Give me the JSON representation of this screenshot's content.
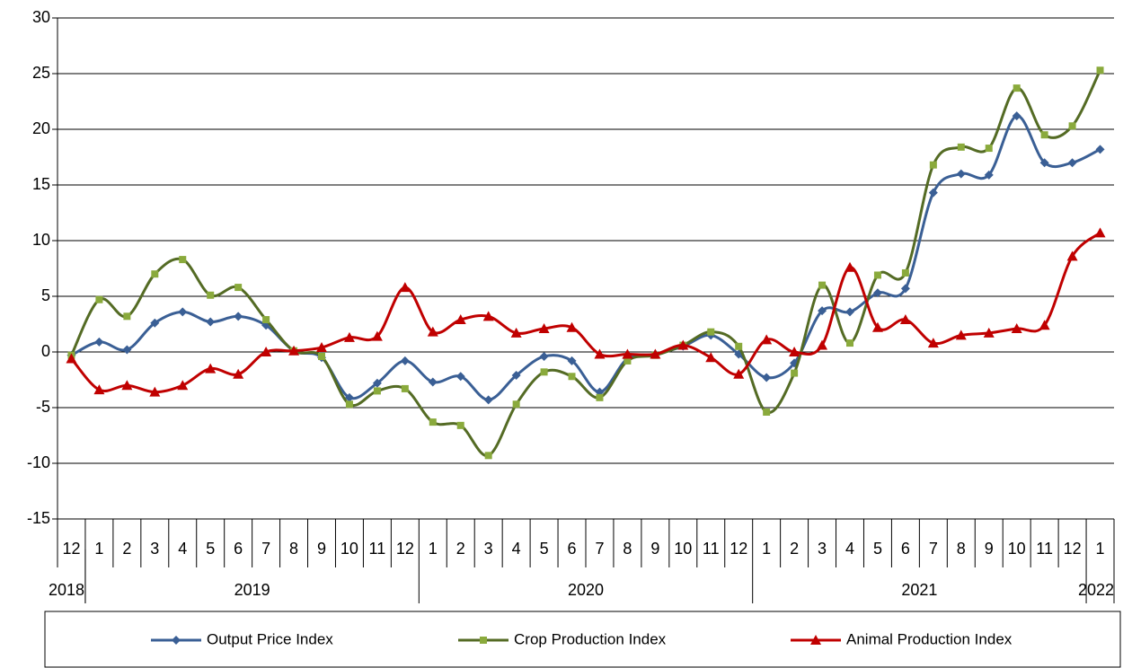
{
  "chart_data": {
    "type": "line",
    "categories": [
      "12",
      "1",
      "2",
      "3",
      "4",
      "5",
      "6",
      "7",
      "8",
      "9",
      "10",
      "11",
      "12",
      "1",
      "2",
      "3",
      "4",
      "5",
      "6",
      "7",
      "8",
      "9",
      "10",
      "11",
      "12",
      "1",
      "2",
      "3",
      "4",
      "5",
      "6",
      "7",
      "8",
      "9",
      "10",
      "11",
      "12",
      "1"
    ],
    "year_labels": [
      "2018",
      "2019",
      "2020",
      "2021",
      "2022"
    ],
    "series": [
      {
        "name": "Output Price Index",
        "color": "#3a5f95",
        "marker": "diamond",
        "values": [
          -0.3,
          0.9,
          0.2,
          2.6,
          3.6,
          2.7,
          3.2,
          2.4,
          0.1,
          -0.5,
          -4.1,
          -2.8,
          -0.8,
          -2.7,
          -2.2,
          -4.3,
          -2.1,
          -0.4,
          -0.8,
          -3.6,
          -0.6,
          -0.2,
          0.5,
          1.5,
          -0.2,
          -2.3,
          -1.0,
          3.7,
          3.6,
          5.3,
          5.7,
          14.3,
          16.0,
          15.9,
          21.2,
          17.0,
          17.0,
          18.2
        ]
      },
      {
        "name": "Crop Production Index",
        "color": "#546b24",
        "marker": "square",
        "marker_color": "#8aaa3c",
        "values": [
          -0.3,
          4.7,
          3.2,
          7.0,
          8.3,
          5.1,
          5.8,
          2.9,
          0.1,
          -0.4,
          -4.7,
          -3.5,
          -3.3,
          -6.3,
          -6.6,
          -9.3,
          -4.7,
          -1.8,
          -2.2,
          -4.1,
          -0.8,
          -0.3,
          0.6,
          1.8,
          0.5,
          -5.4,
          -1.9,
          6.0,
          0.8,
          6.9,
          7.1,
          16.8,
          18.4,
          18.3,
          23.7,
          19.5,
          20.3,
          25.3
        ]
      },
      {
        "name": "Animal Production Index",
        "color": "#c00000",
        "marker": "triangle",
        "values": [
          -0.6,
          -3.4,
          -3.0,
          -3.6,
          -3.0,
          -1.5,
          -2.0,
          0.0,
          0.1,
          0.4,
          1.3,
          1.4,
          5.8,
          1.8,
          2.9,
          3.2,
          1.7,
          2.1,
          2.2,
          -0.2,
          -0.2,
          -0.2,
          0.6,
          -0.5,
          -2.0,
          1.1,
          0.0,
          0.6,
          7.6,
          2.2,
          2.9,
          0.8,
          1.5,
          1.7,
          2.1,
          2.4,
          8.6,
          10.7
        ]
      }
    ],
    "ylim": [
      -15,
      30
    ],
    "yticks": [
      -15,
      -10,
      -5,
      0,
      5,
      10,
      15,
      20,
      25,
      30
    ],
    "grid": true,
    "legend": "bottom"
  }
}
